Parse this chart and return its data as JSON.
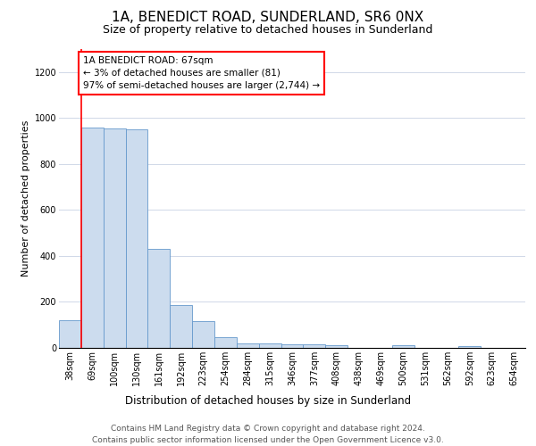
{
  "title": "1A, BENEDICT ROAD, SUNDERLAND, SR6 0NX",
  "subtitle": "Size of property relative to detached houses in Sunderland",
  "xlabel": "Distribution of detached houses by size in Sunderland",
  "ylabel": "Number of detached properties",
  "footer_line1": "Contains HM Land Registry data © Crown copyright and database right 2024.",
  "footer_line2": "Contains public sector information licensed under the Open Government Licence v3.0.",
  "bin_labels": [
    "38sqm",
    "69sqm",
    "100sqm",
    "130sqm",
    "161sqm",
    "192sqm",
    "223sqm",
    "254sqm",
    "284sqm",
    "315sqm",
    "346sqm",
    "377sqm",
    "408sqm",
    "438sqm",
    "469sqm",
    "500sqm",
    "531sqm",
    "562sqm",
    "592sqm",
    "623sqm",
    "654sqm"
  ],
  "bar_values": [
    120,
    960,
    955,
    950,
    430,
    185,
    115,
    45,
    20,
    18,
    15,
    15,
    12,
    0,
    0,
    10,
    0,
    0,
    8,
    0,
    0
  ],
  "bar_color": "#ccdcee",
  "bar_edge_color": "#6699cc",
  "annotation_text_line1": "1A BENEDICT ROAD: 67sqm",
  "annotation_text_line2": "← 3% of detached houses are smaller (81)",
  "annotation_text_line3": "97% of semi-detached houses are larger (2,744) →",
  "red_line_x": 0.5,
  "ylim": [
    0,
    1300
  ],
  "yticks": [
    0,
    200,
    400,
    600,
    800,
    1000,
    1200
  ],
  "title_fontsize": 11,
  "subtitle_fontsize": 9,
  "annotation_fontsize": 7.5,
  "axis_tick_fontsize": 7,
  "xlabel_fontsize": 8.5,
  "ylabel_fontsize": 8,
  "footer_fontsize": 6.5
}
